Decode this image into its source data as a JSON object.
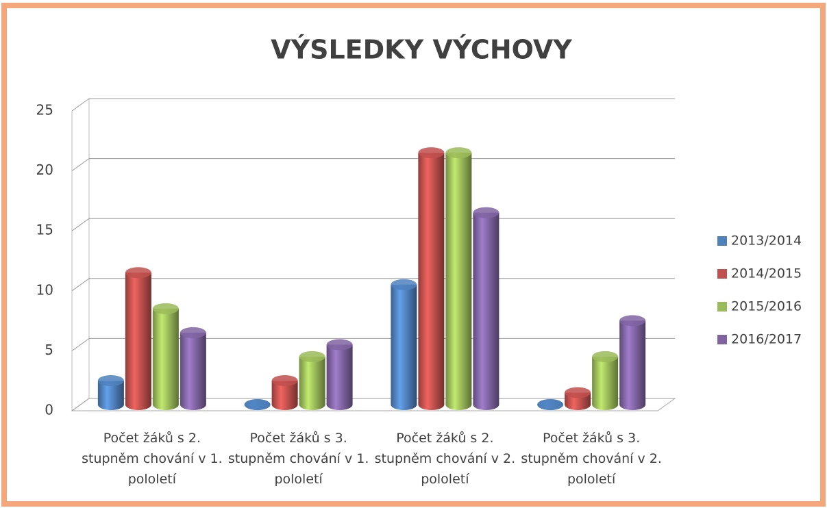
{
  "chart_data": {
    "type": "bar3d",
    "title": "VÝSLEDKY VÝCHOVY",
    "categories": [
      "Počet žáků s 2. stupněm chování v 1. pololetí",
      "Počet žáků s 3. stupněm chování v 1. pololetí",
      "Počet žáků s 2. stupněm chování v 2. pololetí",
      "Počet žáků s 3. stupněm chování v 2. pololetí"
    ],
    "series": [
      {
        "name": "2013/2014",
        "color": "#4f81bd",
        "values": [
          2,
          0,
          10,
          0
        ]
      },
      {
        "name": "2014/2015",
        "color": "#c0504d",
        "values": [
          11,
          2,
          21,
          1
        ]
      },
      {
        "name": "2015/2016",
        "color": "#9bbb59",
        "values": [
          8,
          4,
          21,
          4
        ]
      },
      {
        "name": "2016/2017",
        "color": "#8064a2",
        "values": [
          6,
          5,
          16,
          7
        ]
      }
    ],
    "ylim": [
      0,
      25
    ],
    "yticks": [
      0,
      5,
      10,
      15,
      20,
      25
    ],
    "grid": true,
    "legend": "right"
  }
}
